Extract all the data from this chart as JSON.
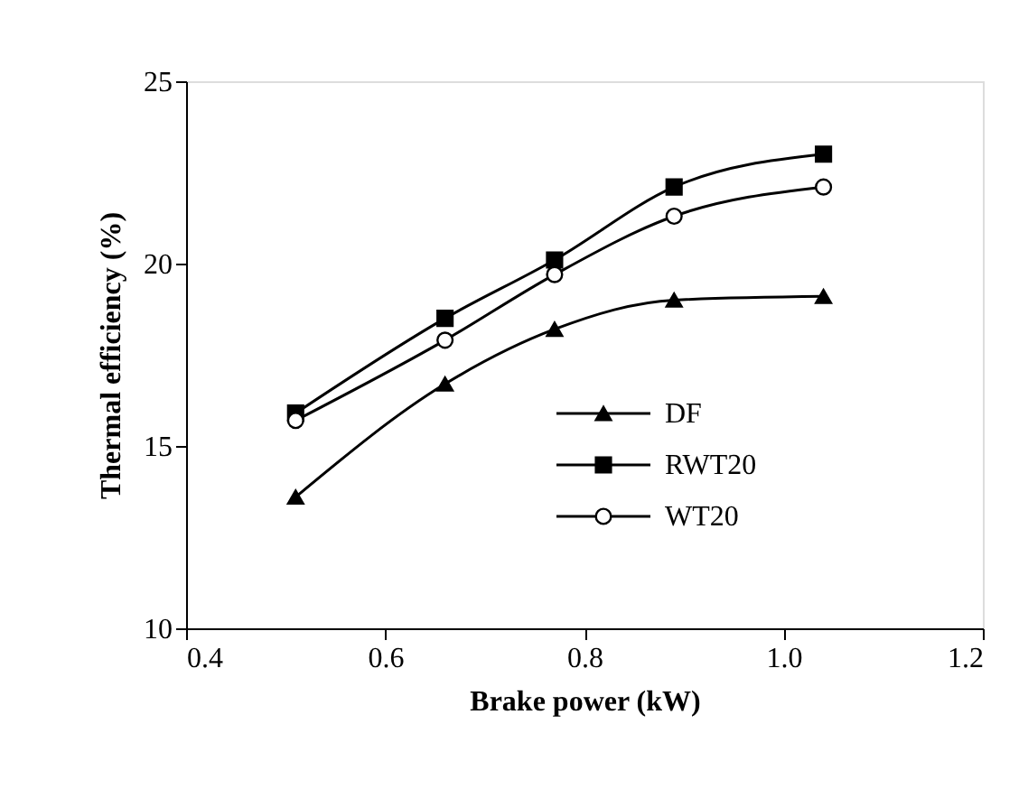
{
  "chart_data": {
    "type": "line",
    "xlabel": "Brake power (kW)",
    "ylabel": "Thermal efficiency (%)",
    "x": [
      0.51,
      0.66,
      0.77,
      0.89,
      1.04
    ],
    "series": [
      {
        "name": "DF",
        "color": "#000000",
        "marker": "triangle",
        "values": [
          13.6,
          16.7,
          18.2,
          19.0,
          19.1
        ]
      },
      {
        "name": "RWT20",
        "color": "#000000",
        "marker": "square",
        "values": [
          15.9,
          18.5,
          20.1,
          22.1,
          23.0
        ]
      },
      {
        "name": "WT20",
        "color": "#000000",
        "marker": "circle",
        "values": [
          15.7,
          17.9,
          19.7,
          21.3,
          22.1
        ]
      }
    ],
    "xlim": [
      0.4,
      1.2
    ],
    "xticks": [
      {
        "value": 0.4,
        "label": "0.4"
      },
      {
        "value": 0.6,
        "label": "0.6"
      },
      {
        "value": 0.8,
        "label": "0.8"
      },
      {
        "value": 1.0,
        "label": "1.0"
      },
      {
        "value": 1.2,
        "label": "1.2"
      }
    ],
    "ylim": [
      10,
      25
    ],
    "yticks": [
      10,
      15,
      20,
      25
    ],
    "grid": false,
    "legend": "bottom",
    "line_style": "solid"
  }
}
